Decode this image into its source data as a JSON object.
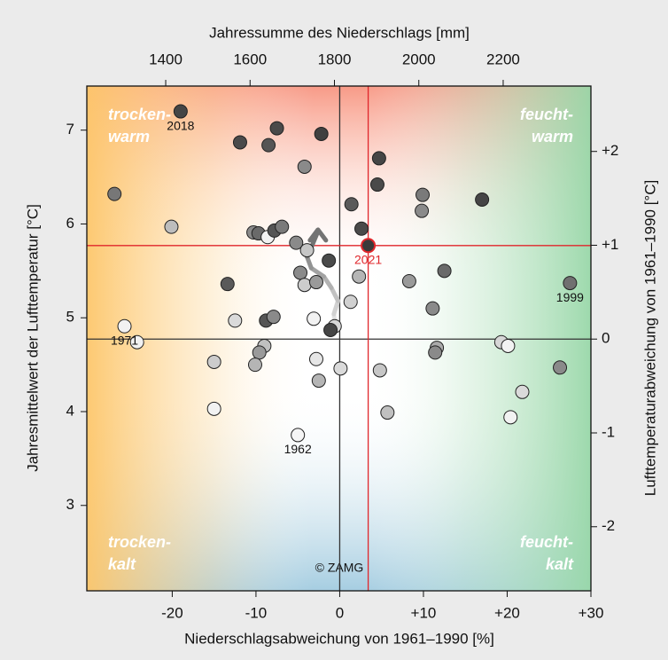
{
  "chart_data": {
    "type": "scatter",
    "x_title": "Niederschlagsabweichung von 1961–1990 [%]",
    "x2_title": "Jahressumme des Niederschlags [mm]",
    "y_title": "Jahresmittelwert der Lufttemperatur [°C]",
    "y2_title": "Lufttemperaturabweichung von 1961–1990 [°C]",
    "xlim": [
      -30.2,
      30.0
    ],
    "xticks": [
      -20,
      -10,
      0,
      {
        "value": 10,
        "label": "+10"
      },
      {
        "value": 20,
        "label": "+20"
      },
      {
        "value": 30,
        "label": "+30"
      }
    ],
    "x2lim": [
      1213,
      2408
    ],
    "x2ticks": [
      1400,
      1600,
      1800,
      2000,
      2200
    ],
    "ylim": [
      2.09,
      7.47
    ],
    "yticks": [
      3,
      4,
      5,
      6,
      7
    ],
    "y2lim": [
      -2.683,
      2.697
    ],
    "y2ticks": [
      -2,
      -1,
      0,
      {
        "value": 1,
        "label": "+1"
      },
      {
        "value": 2,
        "label": "+2"
      }
    ],
    "corner_labels": [
      [
        "trocken-",
        "warm"
      ],
      [
        "feucht-",
        "warm"
      ],
      [
        "trocken-",
        "kalt"
      ],
      [
        "feucht-",
        "kalt"
      ]
    ],
    "credit": "© ZAMG",
    "ref_lines": [
      {
        "axis": "x",
        "value": 0,
        "color": "#333333"
      },
      {
        "axis": "y2",
        "value": 0,
        "color": "#333333"
      },
      {
        "axis": "x",
        "value": 3.4,
        "color": "#e0262b"
      },
      {
        "axis": "y",
        "value": 5.77,
        "color": "#e0262b"
      }
    ],
    "points": {
      "x": [
        -19.0,
        -11.9,
        -8.5,
        -7.5,
        -2.2,
        -4.2,
        4.7,
        4.5,
        1.4,
        9.9,
        9.8,
        17.0,
        -26.9,
        -20.1,
        -10.3,
        -9.7,
        -8.6,
        -7.8,
        -6.9,
        -5.2,
        -3.9,
        2.6,
        3.4,
        -1.3,
        -4.7,
        -4.2,
        -2.8,
        -13.4,
        2.3,
        8.3,
        12.5,
        27.5,
        1.3,
        -12.5,
        -8.8,
        -7.9,
        -3.1,
        11.1,
        -25.7,
        -24.2,
        -0.6,
        -1.1,
        -9.0,
        -9.6,
        11.6,
        11.4,
        19.3,
        20.1,
        26.3,
        -15.0,
        -10.1,
        -2.8,
        0.1,
        4.8,
        -2.5,
        -15.0,
        5.7,
        21.8,
        20.4,
        -5.0
      ],
      "y": [
        7.2,
        6.87,
        6.84,
        7.02,
        6.96,
        6.61,
        6.7,
        6.42,
        6.21,
        6.31,
        6.14,
        6.26,
        6.32,
        5.97,
        5.91,
        5.9,
        5.86,
        5.93,
        5.97,
        5.8,
        5.72,
        5.95,
        5.77,
        5.61,
        5.48,
        5.35,
        5.38,
        5.36,
        5.44,
        5.39,
        5.5,
        5.37,
        5.17,
        4.97,
        4.97,
        5.01,
        4.99,
        5.1,
        4.91,
        4.74,
        4.91,
        4.87,
        4.7,
        4.63,
        4.68,
        4.63,
        4.74,
        4.7,
        4.47,
        4.53,
        4.5,
        4.56,
        4.46,
        4.44,
        4.33,
        4.03,
        3.99,
        4.21,
        3.94,
        3.75
      ],
      "colors": [
        "#454545",
        "#4a4a4a",
        "#555555",
        "#4a4a4a",
        "#404040",
        "#8a8a8a",
        "#454545",
        "#4a4a4a",
        "#5a5a5a",
        "#7a7a7a",
        "#8a8a8a",
        "#454545",
        "#777777",
        "#bdbdbd",
        "#8a8a8a",
        "#6a6a6a",
        "#f2f2f2",
        "#555555",
        "#7a7a7a",
        "#8a8a8a",
        "#c6c6c6",
        "#4a4a4a",
        "#3a3a3a",
        "#4a4a4a",
        "#8a8a8a",
        "#cccccc",
        "#9a9a9a",
        "#5a5a5a",
        "#b5b5b5",
        "#9a9a9a",
        "#6a6a6a",
        "#707070",
        "#d0d0d0",
        "#dadada",
        "#555555",
        "#8a8a8a",
        "#f2f2f2",
        "#8a8a8a",
        "#f2f2f2",
        "#f2f2f2",
        "#d6d6d6",
        "#454545",
        "#c0c0c0",
        "#9a9a9a",
        "#aaaaaa",
        "#8a8a8a",
        "#d6d6d6",
        "#f2f2f2",
        "#8a8a8a",
        "#cccccc",
        "#b5b5b5",
        "#e6e6e6",
        "#dadada",
        "#c6c6c6",
        "#b5b5b5",
        "#f2f2f2",
        "#c0c0c0",
        "#dadada",
        "#f2f2f2",
        "#f5f5f5"
      ],
      "labels": [
        "2018",
        null,
        null,
        null,
        null,
        null,
        null,
        null,
        null,
        null,
        null,
        null,
        null,
        null,
        null,
        null,
        null,
        null,
        null,
        null,
        null,
        null,
        "2021",
        null,
        null,
        null,
        null,
        null,
        null,
        null,
        null,
        "1999",
        null,
        null,
        null,
        null,
        null,
        null,
        "1971",
        null,
        null,
        null,
        null,
        null,
        null,
        null,
        null,
        null,
        null,
        null,
        null,
        null,
        null,
        null,
        null,
        null,
        null,
        null,
        null,
        "1962"
      ],
      "highlight_color": "#e0262b"
    },
    "trend": {
      "x": [
        -0.5,
        -0.7,
        -0.2,
        -1.0,
        -1.9,
        -3.4,
        -3.9,
        -3.3,
        -2.6
      ],
      "y": [
        4.88,
        5.04,
        5.18,
        5.32,
        5.44,
        5.53,
        5.65,
        5.77,
        5.92
      ]
    }
  }
}
